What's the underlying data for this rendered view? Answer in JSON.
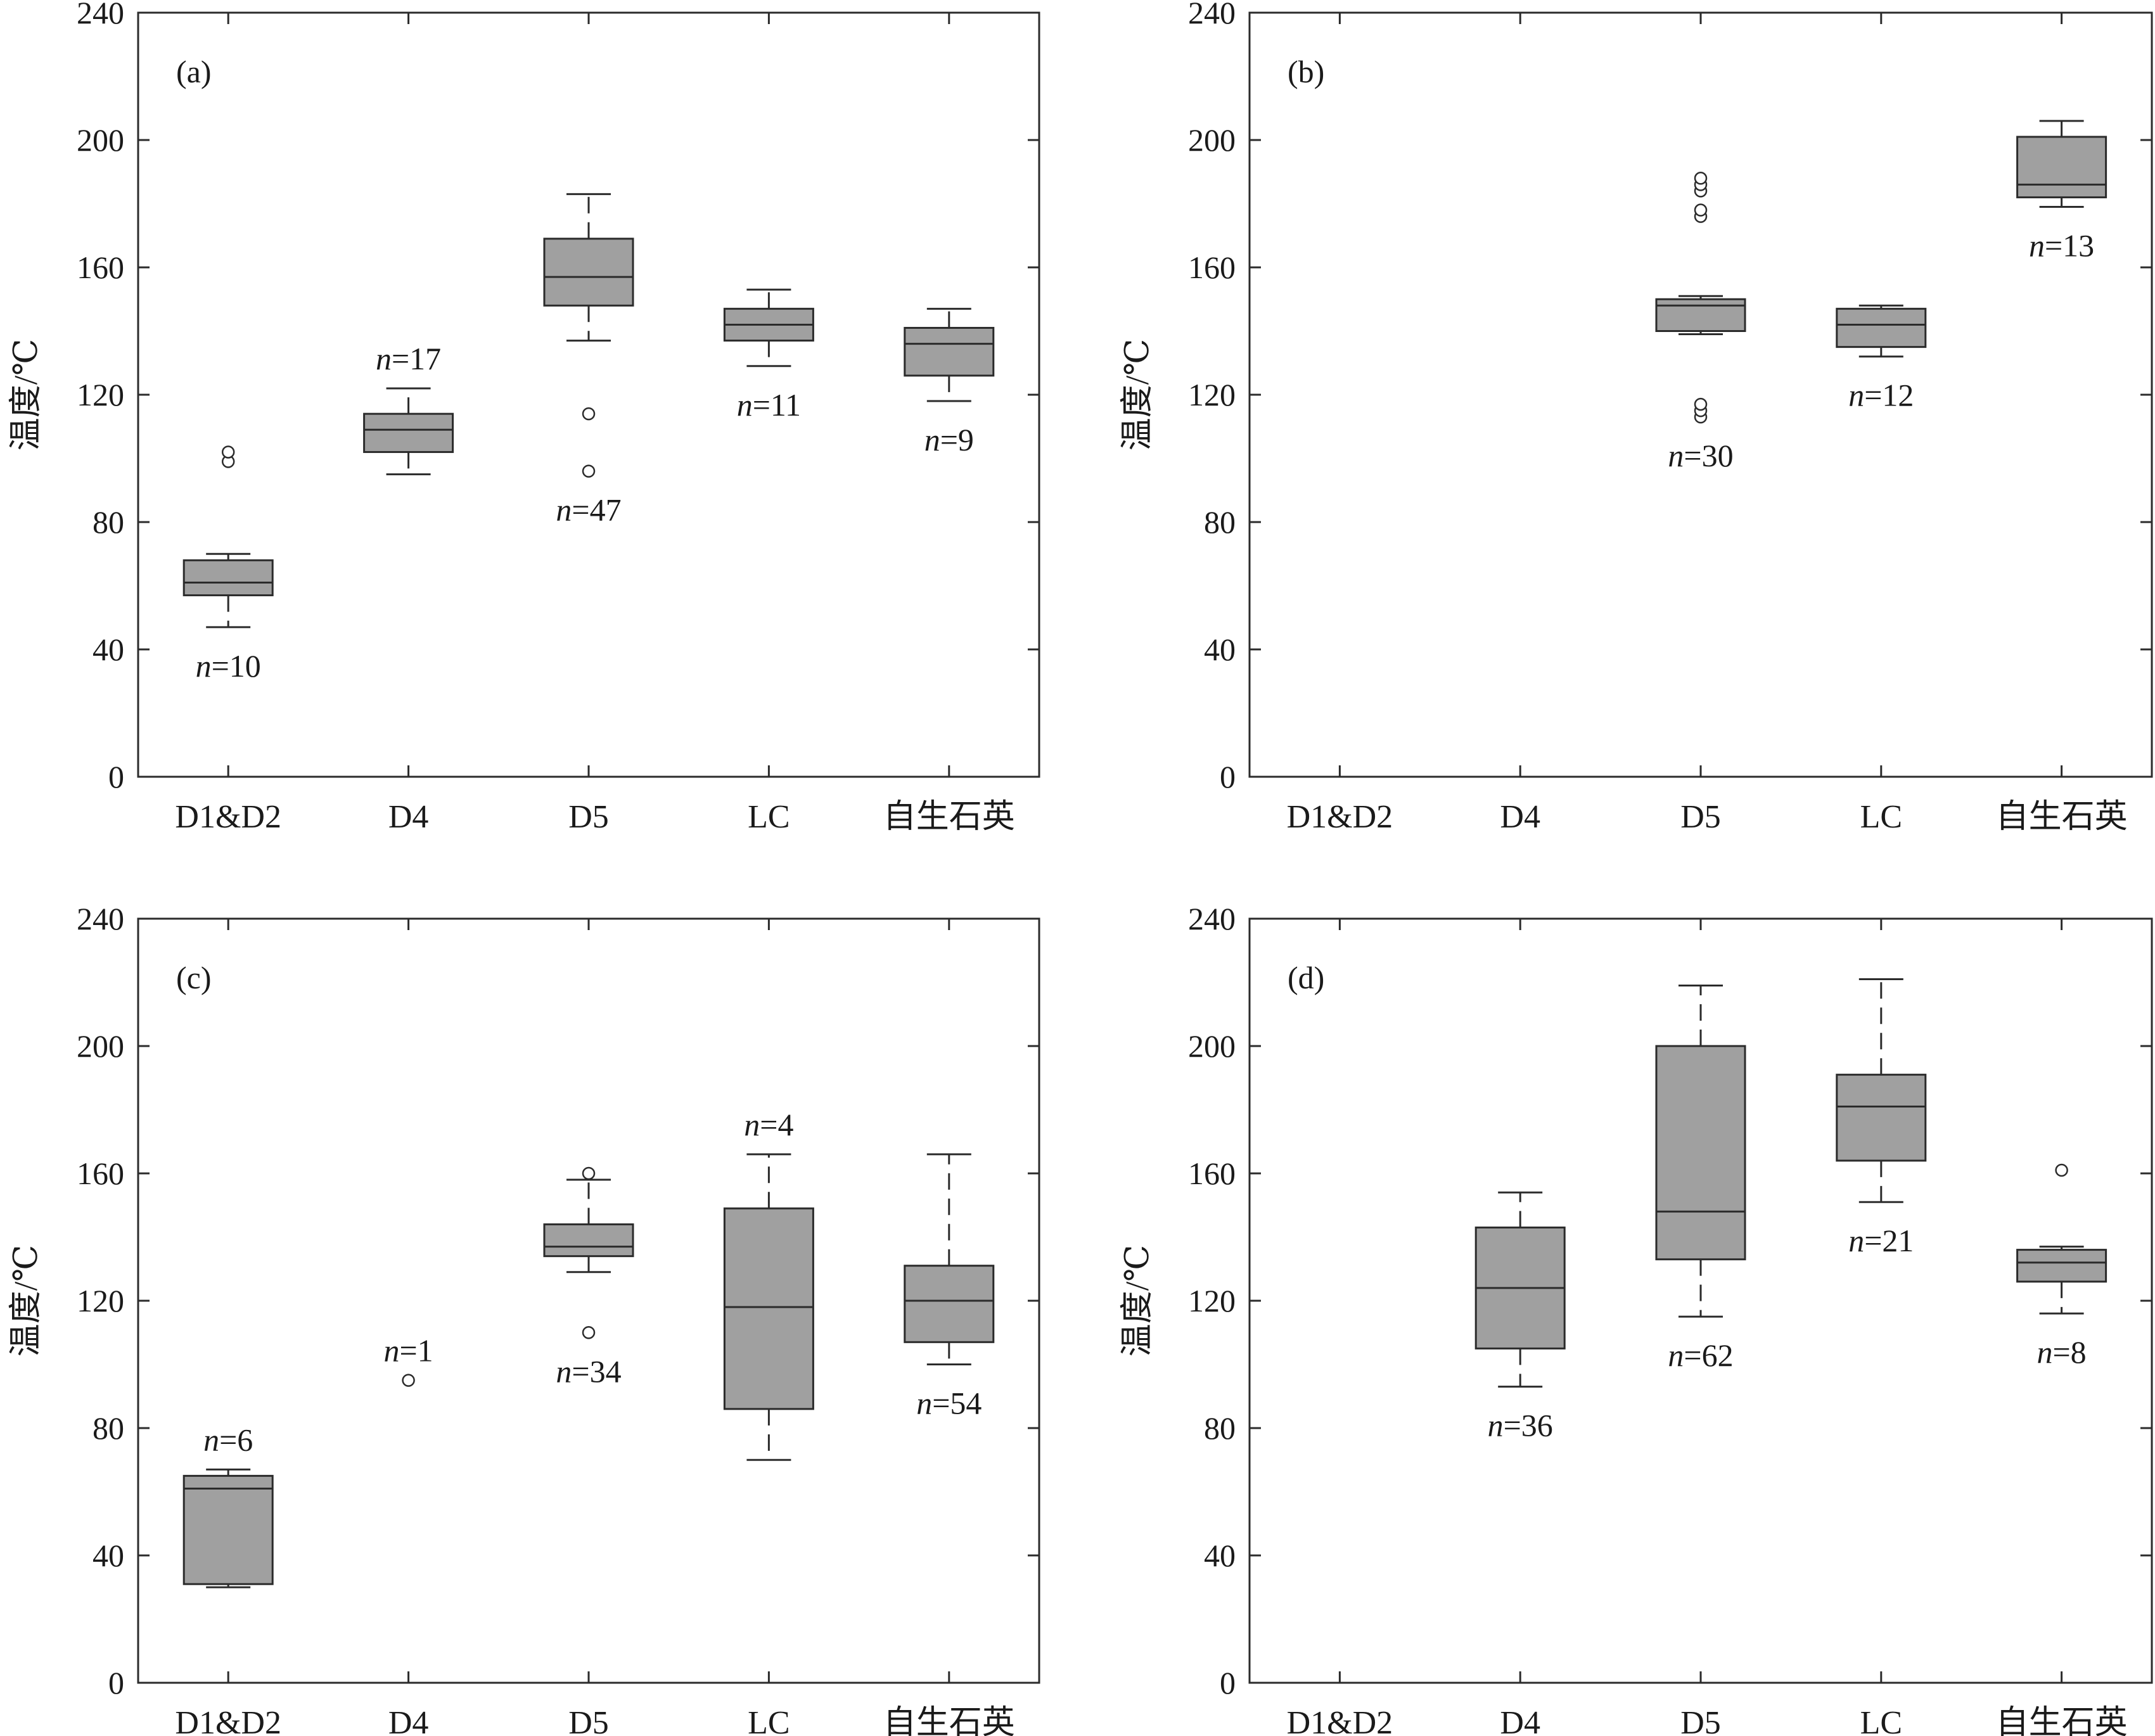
{
  "chart_data": [
    {
      "type": "box",
      "panel": "(a)",
      "ylabel": "温度/℃",
      "ylim": [
        0,
        240
      ],
      "yticks": [
        0,
        40,
        80,
        120,
        160,
        200,
        240
      ],
      "categories": [
        "D1&D2",
        "D4",
        "D5",
        "LC",
        "自生石英"
      ],
      "boxes": [
        {
          "category": "D1&D2",
          "n": "10",
          "whisker_low": 47,
          "q1": 57,
          "median": 61,
          "q3": 68,
          "whisker_high": 70,
          "outliers": [
            99,
            102
          ],
          "n_position": "below"
        },
        {
          "category": "D4",
          "n": "17",
          "whisker_low": 95,
          "q1": 102,
          "median": 109,
          "q3": 114,
          "whisker_high": 122,
          "outliers": [],
          "n_position": "above"
        },
        {
          "category": "D5",
          "n": "47",
          "whisker_low": 137,
          "q1": 148,
          "median": 157,
          "q3": 169,
          "whisker_high": 183,
          "outliers": [
            96,
            114
          ],
          "n_position": "below"
        },
        {
          "category": "LC",
          "n": "11",
          "whisker_low": 129,
          "q1": 137,
          "median": 142,
          "q3": 147,
          "whisker_high": 153,
          "outliers": [],
          "n_position": "below"
        },
        {
          "category": "自生石英",
          "n": "9",
          "whisker_low": 118,
          "q1": 126,
          "median": 136,
          "q3": 141,
          "whisker_high": 147,
          "outliers": [],
          "n_position": "below"
        }
      ]
    },
    {
      "type": "box",
      "panel": "(b)",
      "ylabel": "温度/℃",
      "ylim": [
        0,
        240
      ],
      "yticks": [
        0,
        40,
        80,
        120,
        160,
        200,
        240
      ],
      "categories": [
        "D1&D2",
        "D4",
        "D5",
        "LC",
        "自生石英"
      ],
      "boxes": [
        {
          "category": "D5",
          "n": "30",
          "whisker_low": 139,
          "q1": 140,
          "median": 148,
          "q3": 150,
          "whisker_high": 151,
          "outliers": [
            113,
            115,
            117,
            176,
            178,
            184,
            186,
            188
          ],
          "n_position": "below"
        },
        {
          "category": "LC",
          "n": "12",
          "whisker_low": 132,
          "q1": 135,
          "median": 142,
          "q3": 147,
          "whisker_high": 148,
          "outliers": [],
          "n_position": "below"
        },
        {
          "category": "自生石英",
          "n": "13",
          "whisker_low": 179,
          "q1": 182,
          "median": 186,
          "q3": 201,
          "whisker_high": 206,
          "outliers": [],
          "n_position": "below"
        }
      ]
    },
    {
      "type": "box",
      "panel": "(c)",
      "ylabel": "温度/℃",
      "ylim": [
        0,
        240
      ],
      "yticks": [
        0,
        40,
        80,
        120,
        160,
        200,
        240
      ],
      "categories": [
        "D1&D2",
        "D4",
        "D5",
        "LC",
        "自生石英"
      ],
      "boxes": [
        {
          "category": "D1&D2",
          "n": "6",
          "whisker_low": 30,
          "q1": 31,
          "median": 61,
          "q3": 65,
          "whisker_high": 67,
          "outliers": [],
          "n_position": "above"
        },
        {
          "category": "D4",
          "n": "1",
          "whisker_low": null,
          "q1": null,
          "median": null,
          "q3": null,
          "whisker_high": null,
          "outliers": [
            95
          ],
          "n_position": "above"
        },
        {
          "category": "D5",
          "n": "34",
          "whisker_low": 129,
          "q1": 134,
          "median": 137,
          "q3": 144,
          "whisker_high": 158,
          "outliers": [
            110,
            160
          ],
          "n_position": "below"
        },
        {
          "category": "LC",
          "n": "4",
          "whisker_low": 70,
          "q1": 86,
          "median": 118,
          "q3": 149,
          "whisker_high": 166,
          "outliers": [],
          "n_position": "above"
        },
        {
          "category": "自生石英",
          "n": "54",
          "whisker_low": 100,
          "q1": 107,
          "median": 120,
          "q3": 131,
          "whisker_high": 166,
          "outliers": [],
          "n_position": "below"
        }
      ]
    },
    {
      "type": "box",
      "panel": "(d)",
      "ylabel": "温度/℃",
      "ylim": [
        0,
        240
      ],
      "yticks": [
        0,
        40,
        80,
        120,
        160,
        200,
        240
      ],
      "categories": [
        "D1&D2",
        "D4",
        "D5",
        "LC",
        "自生石英"
      ],
      "boxes": [
        {
          "category": "D4",
          "n": "36",
          "whisker_low": 93,
          "q1": 105,
          "median": 124,
          "q3": 143,
          "whisker_high": 154,
          "outliers": [],
          "n_position": "below"
        },
        {
          "category": "D5",
          "n": "62",
          "whisker_low": 115,
          "q1": 133,
          "median": 148,
          "q3": 200,
          "whisker_high": 219,
          "outliers": [],
          "n_position": "below"
        },
        {
          "category": "LC",
          "n": "21",
          "whisker_low": 151,
          "q1": 164,
          "median": 181,
          "q3": 191,
          "whisker_high": 221,
          "outliers": [],
          "n_position": "below"
        },
        {
          "category": "自生石英",
          "n": "8",
          "whisker_low": 116,
          "q1": 126,
          "median": 132,
          "q3": 136,
          "whisker_high": 137,
          "outliers": [
            161
          ],
          "n_position": "below"
        }
      ]
    }
  ],
  "style": {
    "box_fill": "#a0a0a0",
    "line_color": "#2b2b2b",
    "text_color": "#1a1a1a"
  }
}
